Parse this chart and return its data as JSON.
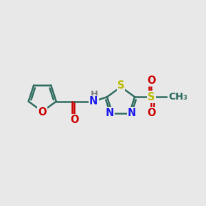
{
  "bg_color": "#e8e8e8",
  "bond_color": "#2d6b5e",
  "N_color": "#1a1aee",
  "O_color": "#cc0000",
  "S_color": "#bbbb00",
  "H_color": "#7a7a7a",
  "bond_width": 1.8,
  "font_size": 10.5,
  "fig_width": 3.0,
  "fig_height": 3.0,
  "dpi": 100,
  "xlim": [
    0,
    10
  ],
  "ylim": [
    0,
    10
  ]
}
